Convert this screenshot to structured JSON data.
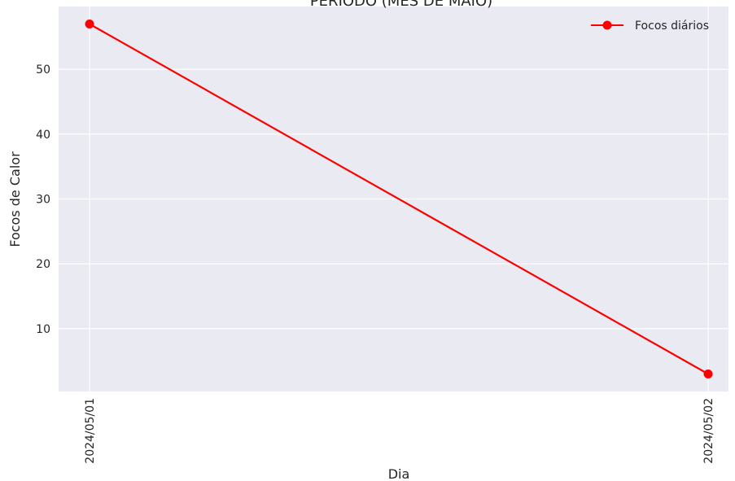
{
  "chart_data": {
    "type": "line",
    "title": "PERÍODO (MÊS DE MAIO)",
    "xlabel": "Dia",
    "ylabel": "Focos de Calor",
    "x": [
      "2024/05/01",
      "2024/05/02"
    ],
    "series": [
      {
        "name": "Focos diários",
        "values": [
          57,
          3
        ],
        "color": "#ff0000",
        "marker": "circle"
      }
    ],
    "ylim": [
      0.3,
      59.7
    ],
    "yticks": [
      10,
      20,
      30,
      40,
      50
    ],
    "grid": true,
    "legend_position": "top-right",
    "background_color": "#eaeaf2",
    "grid_color": "#ffffff"
  }
}
